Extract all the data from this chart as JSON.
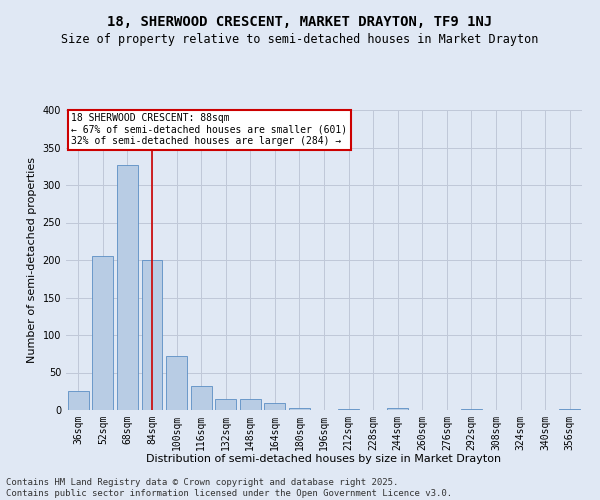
{
  "title": "18, SHERWOOD CRESCENT, MARKET DRAYTON, TF9 1NJ",
  "subtitle": "Size of property relative to semi-detached houses in Market Drayton",
  "xlabel": "Distribution of semi-detached houses by size in Market Drayton",
  "ylabel": "Number of semi-detached properties",
  "categories": [
    "36sqm",
    "52sqm",
    "68sqm",
    "84sqm",
    "100sqm",
    "116sqm",
    "132sqm",
    "148sqm",
    "164sqm",
    "180sqm",
    "196sqm",
    "212sqm",
    "228sqm",
    "244sqm",
    "260sqm",
    "276sqm",
    "292sqm",
    "308sqm",
    "324sqm",
    "340sqm",
    "356sqm"
  ],
  "values": [
    25,
    205,
    327,
    200,
    72,
    32,
    15,
    15,
    9,
    3,
    0,
    2,
    0,
    3,
    0,
    0,
    2,
    0,
    0,
    0,
    2
  ],
  "bar_color": "#b8cce4",
  "bar_edge_color": "#5b8ec4",
  "grid_color": "#c0c8d8",
  "background_color": "#e0e8f4",
  "vline_x_index": 3,
  "vline_color": "#cc0000",
  "annotation_title": "18 SHERWOOD CRESCENT: 88sqm",
  "annotation_line1": "← 67% of semi-detached houses are smaller (601)",
  "annotation_line2": "32% of semi-detached houses are larger (284) →",
  "annotation_box_color": "#ffffff",
  "annotation_box_edge": "#cc0000",
  "footer": "Contains HM Land Registry data © Crown copyright and database right 2025.\nContains public sector information licensed under the Open Government Licence v3.0.",
  "ylim": [
    0,
    400
  ],
  "yticks": [
    0,
    50,
    100,
    150,
    200,
    250,
    300,
    350,
    400
  ],
  "title_fontsize": 10,
  "subtitle_fontsize": 8.5,
  "xlabel_fontsize": 8,
  "ylabel_fontsize": 8,
  "tick_fontsize": 7,
  "footer_fontsize": 6.5
}
